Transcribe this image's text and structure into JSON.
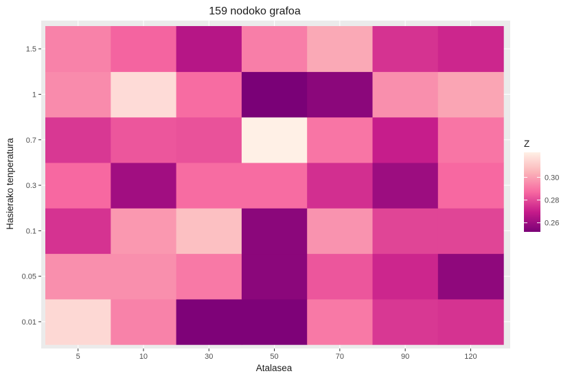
{
  "chart_data": {
    "type": "heatmap",
    "title": "159 nodoko grafoa",
    "xlabel": "Atalasea",
    "ylabel": "Hasierako tenperatura",
    "x_categories": [
      "5",
      "10",
      "30",
      "50",
      "70",
      "90",
      "120"
    ],
    "y_categories": [
      "0.01",
      "0.05",
      "0.1",
      "0.3",
      "0.7",
      "1",
      "1.5"
    ],
    "values": [
      [
        0.315,
        0.293,
        0.253,
        0.253,
        0.291,
        0.276,
        0.275
      ],
      [
        0.296,
        0.296,
        0.291,
        0.256,
        0.283,
        0.272,
        0.257
      ],
      [
        0.275,
        0.298,
        0.308,
        0.256,
        0.297,
        0.279,
        0.279
      ],
      [
        0.287,
        0.261,
        0.288,
        0.288,
        0.274,
        0.26,
        0.287
      ],
      [
        0.276,
        0.283,
        0.282,
        0.322,
        0.29,
        0.27,
        0.29
      ],
      [
        0.295,
        0.316,
        0.288,
        0.252,
        0.256,
        0.296,
        0.301
      ],
      [
        0.293,
        0.286,
        0.266,
        0.292,
        0.302,
        0.275,
        0.272
      ]
    ],
    "color_scale": {
      "title": "Z",
      "min": 0.252,
      "max": 0.322,
      "ticks": [
        "0.26",
        "0.28",
        "0.30"
      ],
      "tick_values": [
        0.26,
        0.28,
        0.3
      ],
      "low_color": "#7a0177",
      "mid_color": "#f768a1",
      "high_color": "#fff0e6"
    },
    "grid": true,
    "legend_position": "right"
  }
}
